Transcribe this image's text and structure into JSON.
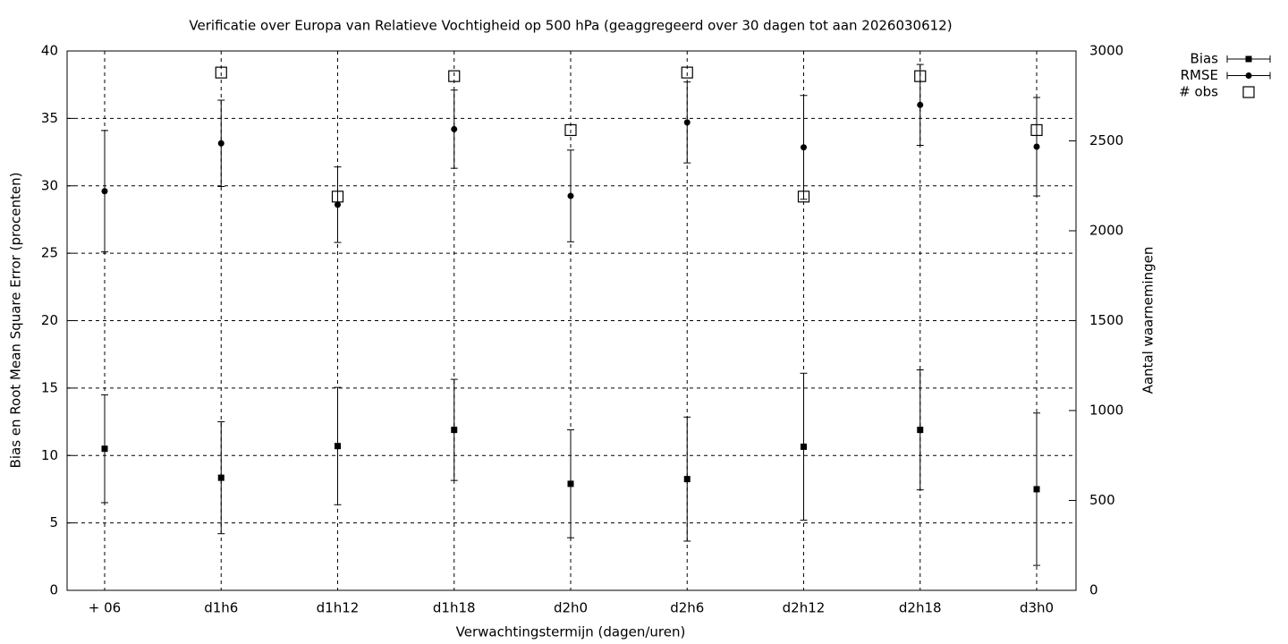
{
  "chart_data": {
    "type": "errorbar",
    "title": "Verificatie over Europa van Relatieve Vochtigheid op 500 hPa (geaggregeerd over 30 dagen tot aan 2026030612)",
    "x_label": "Verwachtingstermijn (dagen/uren)",
    "y_label": "Bias en Root Mean Square Error (procenten)",
    "y2_label": "Aantal waarnemingen",
    "categories": [
      "+ 06",
      "d1h6",
      "d1h12",
      "d1h18",
      "d2h0",
      "d2h6",
      "d2h12",
      "d2h18",
      "d3h0"
    ],
    "ylim": [
      0,
      40
    ],
    "yticks": [
      0,
      5,
      10,
      15,
      20,
      25,
      30,
      35,
      40
    ],
    "y2lim": [
      0,
      3000
    ],
    "y2ticks": [
      0,
      500,
      1000,
      1500,
      2000,
      2500,
      3000
    ],
    "grid": true,
    "legend": "outside top right",
    "series": [
      {
        "name": "Bias",
        "color": "#000000",
        "marker": "filled-square",
        "values": [
          10.5,
          8.35,
          10.7,
          11.9,
          7.9,
          8.25,
          10.65,
          11.9,
          7.5
        ],
        "errors": [
          4.0,
          4.15,
          4.35,
          3.75,
          4.0,
          4.6,
          5.45,
          4.45,
          5.65
        ]
      },
      {
        "name": "RMSE",
        "color": "#000000",
        "marker": "filled-circle",
        "values": [
          29.6,
          33.15,
          28.6,
          34.2,
          29.25,
          34.7,
          32.85,
          36.0,
          32.9
        ],
        "errors": [
          4.5,
          3.2,
          2.8,
          2.9,
          3.4,
          3.0,
          3.85,
          3.0,
          3.65
        ]
      },
      {
        "name": "# obs",
        "color": "#000000",
        "marker": "open-square",
        "axis": "y2",
        "values": [
          null,
          2880,
          2190,
          2860,
          2560,
          2880,
          2190,
          2860,
          2560
        ]
      }
    ]
  }
}
